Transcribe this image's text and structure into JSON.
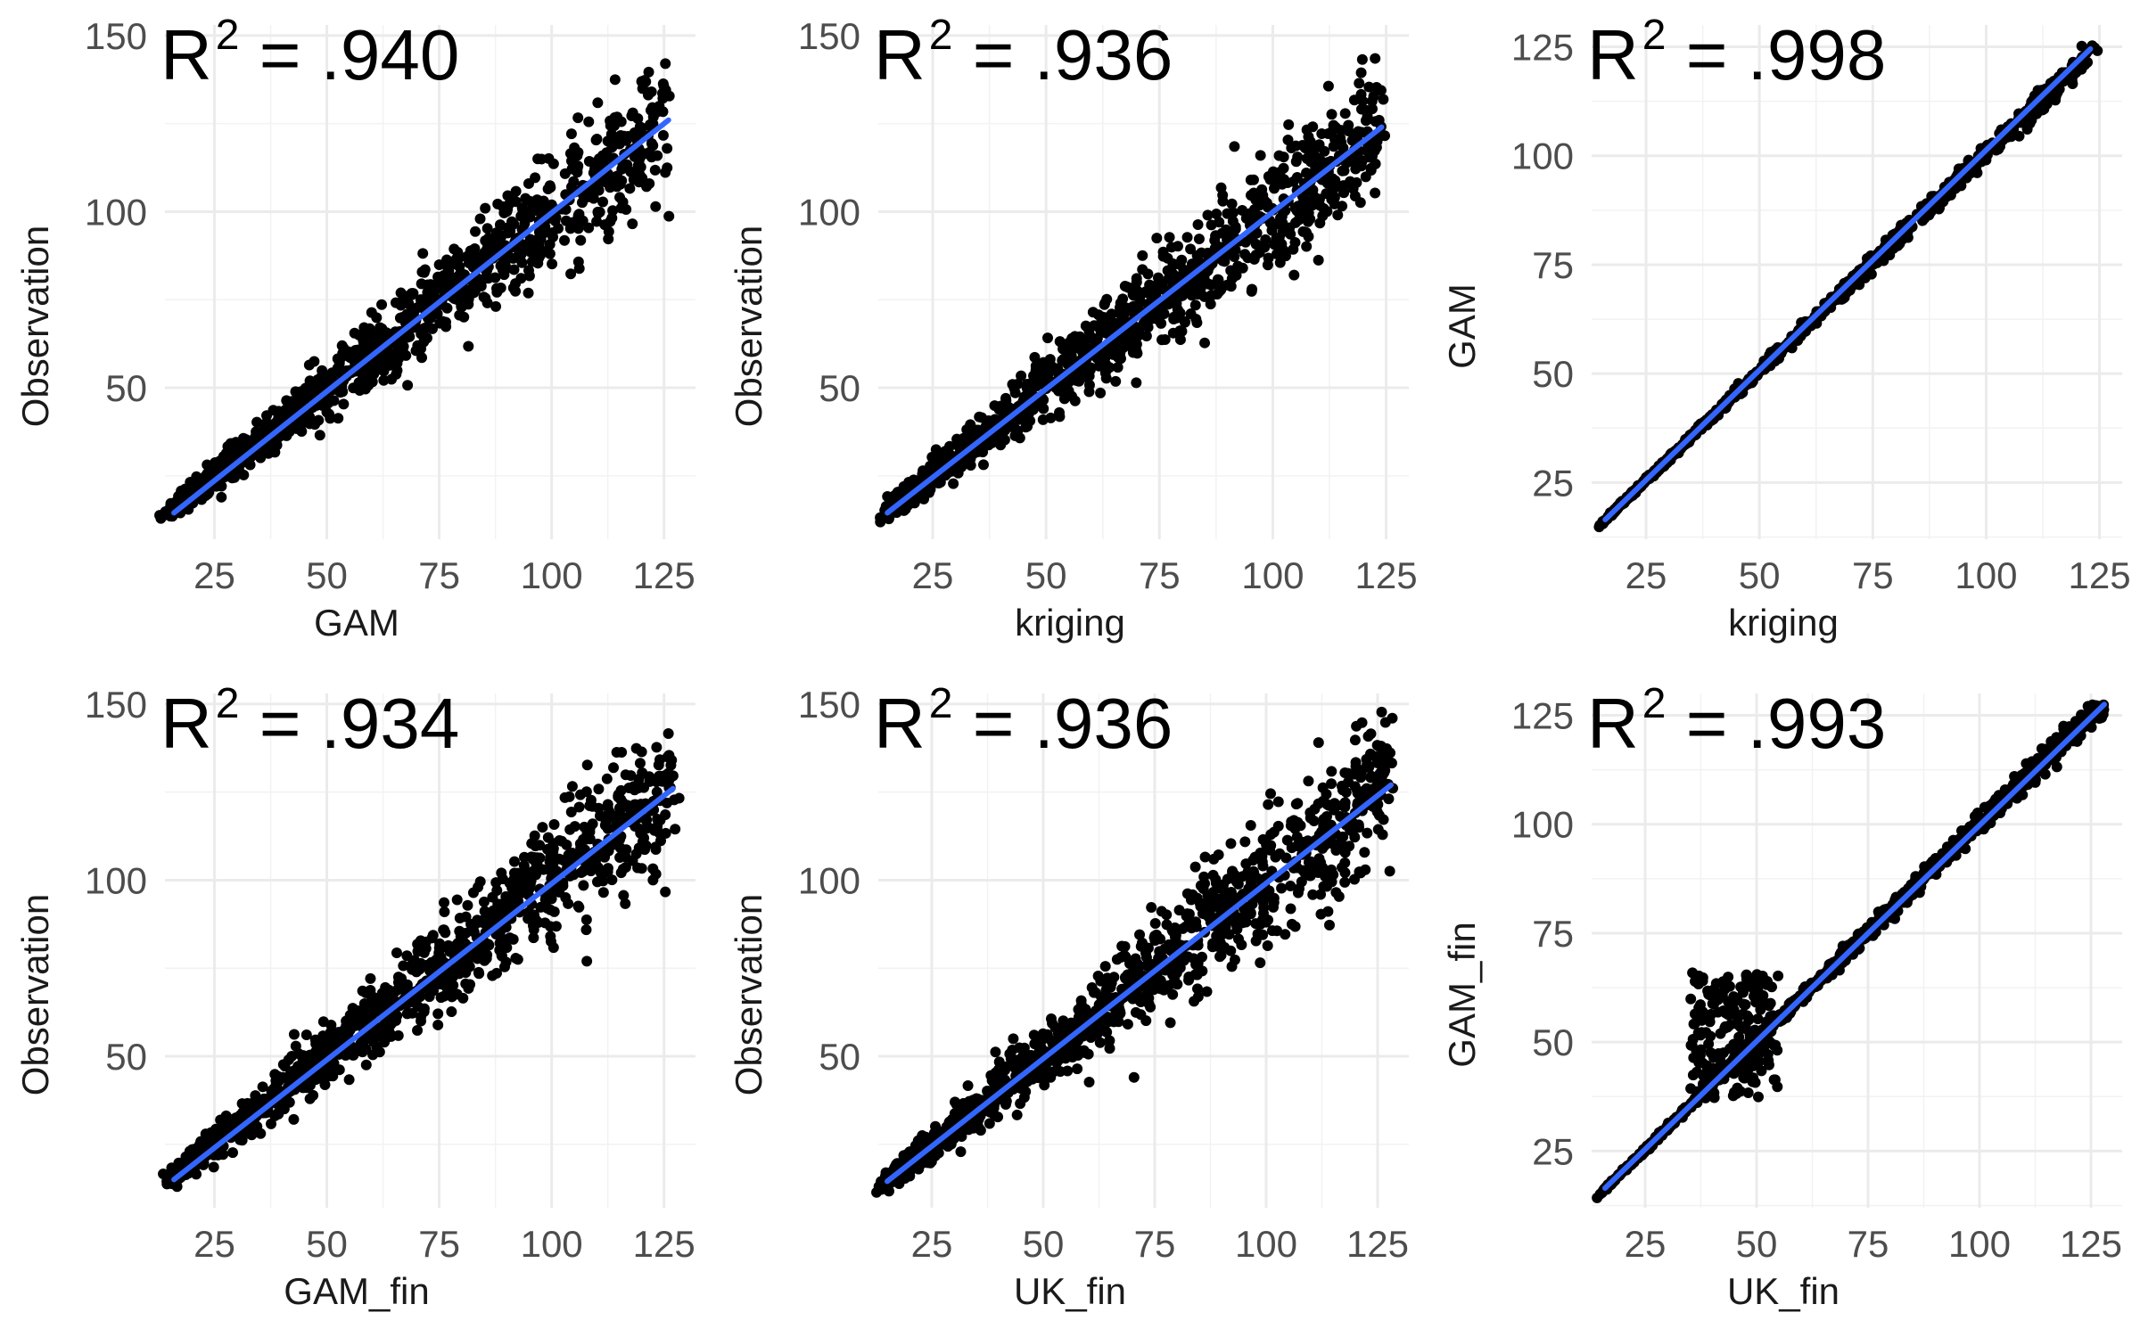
{
  "chart_data": [
    {
      "type": "scatter",
      "title": "",
      "r2_prefix": "R",
      "r2_sup": "2",
      "r2_value": " = .940",
      "xlabel": "GAM",
      "ylabel": "Observation",
      "xlim": [
        14,
        132
      ],
      "ylim": [
        7,
        153
      ],
      "xticks": [
        25,
        50,
        75,
        100,
        125
      ],
      "yticks": [
        50,
        100,
        150
      ],
      "fit_line": {
        "x": [
          16,
          126
        ],
        "y": [
          14.5,
          126
        ],
        "color": "#3366ff"
      },
      "point_color": "#000000",
      "points": {
        "slope": 1.0,
        "intercept": 0,
        "scatter": 0.085,
        "ymax": 148
      }
    },
    {
      "type": "scatter",
      "title": "",
      "r2_prefix": "R",
      "r2_sup": "2",
      "r2_value": " = .936",
      "xlabel": "kriging",
      "ylabel": "Observation",
      "xlim": [
        13,
        130
      ],
      "ylim": [
        7,
        153
      ],
      "xticks": [
        25,
        50,
        75,
        100,
        125
      ],
      "yticks": [
        50,
        100,
        150
      ],
      "fit_line": {
        "x": [
          15,
          124
        ],
        "y": [
          14.5,
          124
        ],
        "color": "#3366ff"
      },
      "point_color": "#000000",
      "points": {
        "slope": 1.0,
        "intercept": 0,
        "scatter": 0.09,
        "ymax": 148
      }
    },
    {
      "type": "scatter",
      "title": "",
      "r2_prefix": "R",
      "r2_sup": "2",
      "r2_value": " = .998",
      "xlabel": "kriging",
      "ylabel": "GAM",
      "xlim": [
        13,
        130
      ],
      "ylim": [
        12,
        130
      ],
      "xticks": [
        25,
        50,
        75,
        100,
        125
      ],
      "yticks": [
        25,
        50,
        75,
        100,
        125
      ],
      "fit_line": {
        "x": [
          16,
          123
        ],
        "y": [
          16.5,
          124.5
        ],
        "color": "#3366ff"
      },
      "point_color": "#000000",
      "points": {
        "slope": 1.0,
        "intercept": 0.5,
        "scatter": 0.012,
        "ymax": 126
      }
    },
    {
      "type": "scatter",
      "title": "",
      "r2_prefix": "R",
      "r2_sup": "2",
      "r2_value": " = .934",
      "xlabel": "GAM_fin",
      "ylabel": "Observation",
      "xlim": [
        14,
        132
      ],
      "ylim": [
        7,
        153
      ],
      "xticks": [
        25,
        50,
        75,
        100,
        125
      ],
      "yticks": [
        50,
        100,
        150
      ],
      "fit_line": {
        "x": [
          16,
          127
        ],
        "y": [
          15,
          126
        ],
        "color": "#3366ff"
      },
      "point_color": "#000000",
      "points": {
        "slope": 1.0,
        "intercept": 0,
        "scatter": 0.09,
        "ymax": 148
      }
    },
    {
      "type": "scatter",
      "title": "",
      "r2_prefix": "R",
      "r2_sup": "2",
      "r2_value": " = .936",
      "xlabel": "UK_fin",
      "ylabel": "Observation",
      "xlim": [
        13,
        132
      ],
      "ylim": [
        7,
        153
      ],
      "xticks": [
        25,
        50,
        75,
        100,
        125
      ],
      "yticks": [
        50,
        100,
        150
      ],
      "fit_line": {
        "x": [
          15,
          128
        ],
        "y": [
          14.5,
          127
        ],
        "color": "#3366ff"
      },
      "point_color": "#000000",
      "points": {
        "slope": 1.0,
        "intercept": 0,
        "scatter": 0.09,
        "ymax": 148
      }
    },
    {
      "type": "scatter",
      "title": "",
      "r2_prefix": "R",
      "r2_sup": "2",
      "r2_value": " = .993",
      "xlabel": "UK_fin",
      "ylabel": "GAM_fin",
      "xlim": [
        13,
        132
      ],
      "ylim": [
        12,
        130
      ],
      "xticks": [
        25,
        50,
        75,
        100,
        125
      ],
      "yticks": [
        25,
        50,
        75,
        100,
        125
      ],
      "fit_line": {
        "x": [
          16,
          128
        ],
        "y": [
          16.5,
          127.5
        ],
        "color": "#3366ff"
      },
      "point_color": "#000000",
      "points": {
        "slope": 1.0,
        "intercept": 0.3,
        "scatter": 0.012,
        "ymax": 128,
        "cluster": {
          "xmin": 35,
          "xmax": 55,
          "ymin": 37,
          "ymax": 66
        }
      }
    }
  ]
}
